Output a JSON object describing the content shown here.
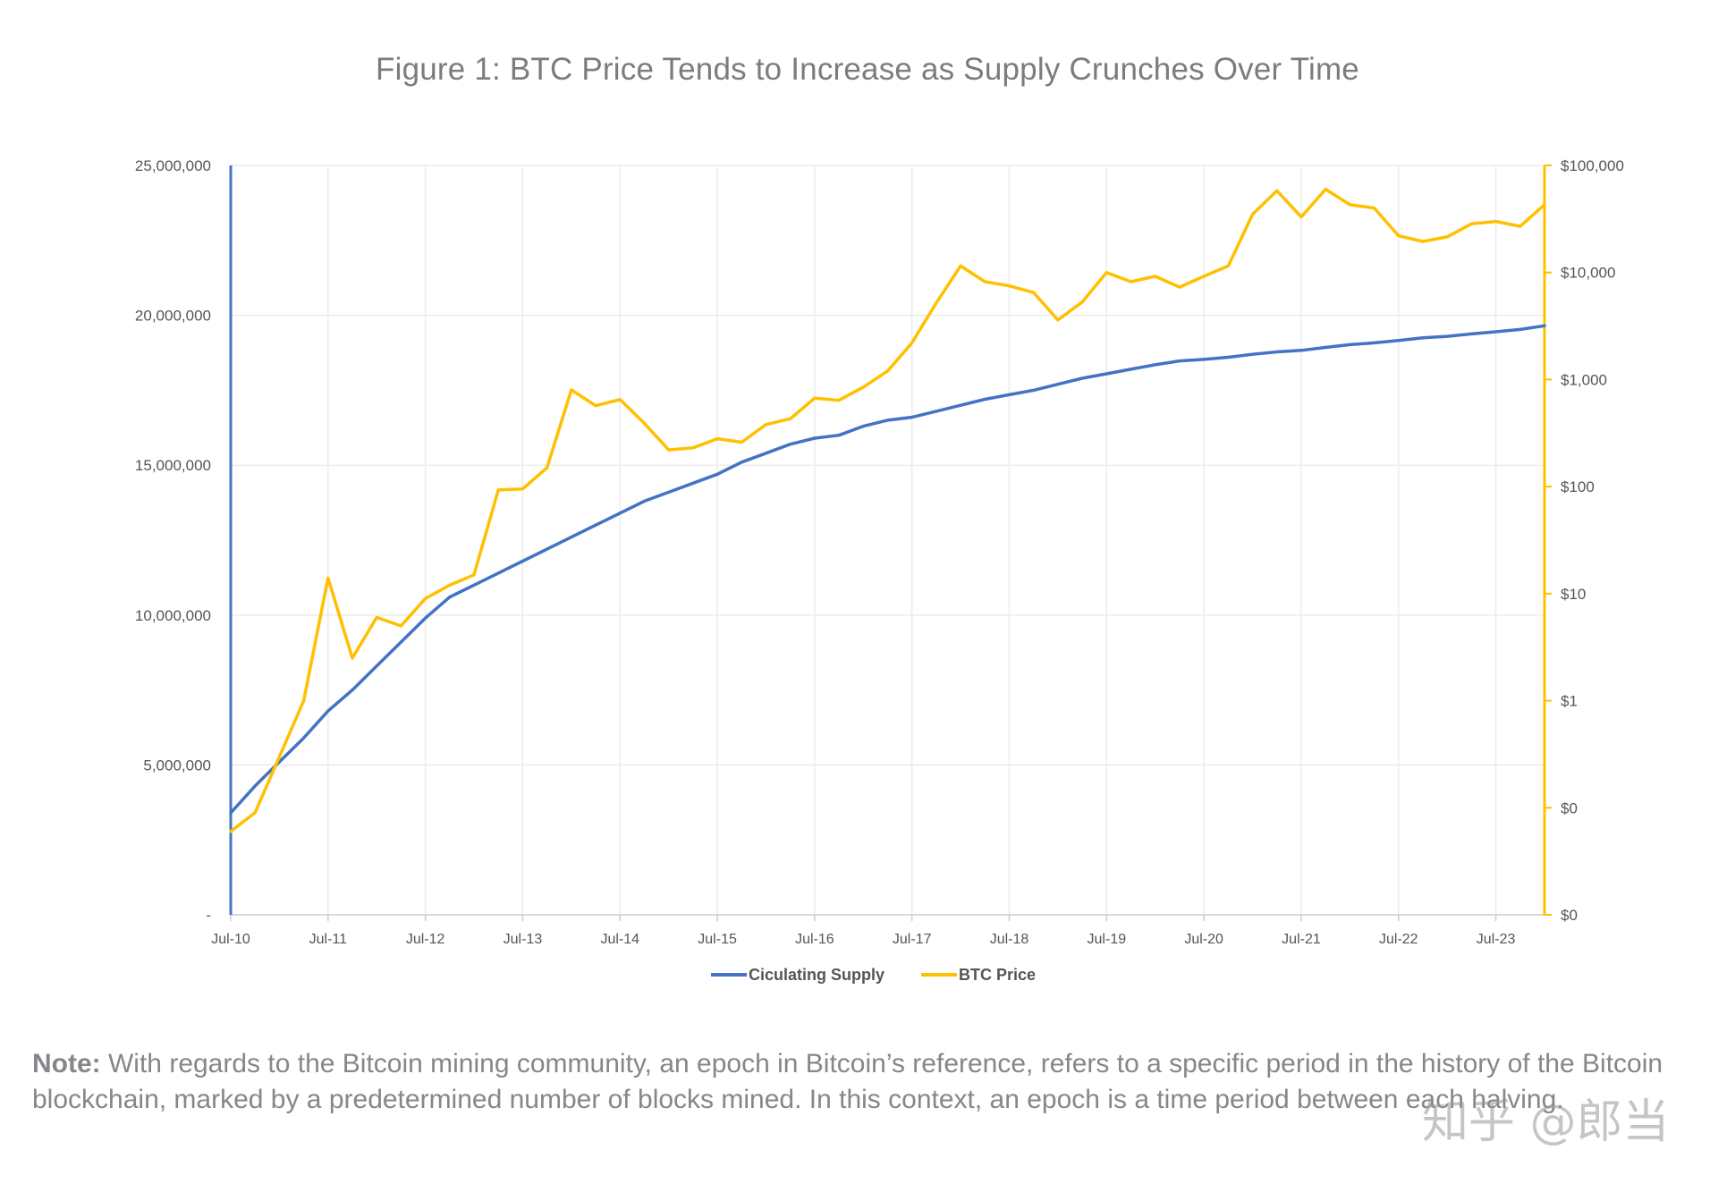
{
  "figure": {
    "title": "Figure 1: BTC Price Tends to Increase as Supply Crunches Over Time"
  },
  "chart_data": {
    "type": "line",
    "title": "Figure 1: BTC Price Tends to Increase as Supply Crunches Over Time",
    "x_tick_labels": [
      "Jul-10",
      "Jul-11",
      "Jul-12",
      "Jul-13",
      "Jul-14",
      "Jul-15",
      "Jul-16",
      "Jul-17",
      "Jul-18",
      "Jul-19",
      "Jul-20",
      "Jul-21",
      "Jul-22",
      "Jul-23"
    ],
    "x_range": [
      2010.5,
      2024.0
    ],
    "left_axis": {
      "ticks": [
        0,
        5000000,
        10000000,
        15000000,
        20000000,
        25000000
      ],
      "tick_labels": [
        "-",
        "5,000,000",
        "10,000,000",
        "15,000,000",
        "20,000,000",
        "25,000,000"
      ],
      "ylim": [
        0,
        25000000
      ],
      "scale": "linear"
    },
    "right_axis": {
      "ticks": [
        0.01,
        0.1,
        1,
        10,
        100,
        1000,
        10000,
        100000
      ],
      "tick_labels": [
        "$0",
        "$0",
        "$1",
        "$10",
        "$100",
        "$1,000",
        "$10,000",
        "$100,000"
      ],
      "ylim": [
        0.01,
        100000
      ],
      "scale": "log"
    },
    "grid": true,
    "legend_placement": "bottom",
    "series": [
      {
        "name": "Ciculating Supply",
        "axis": "left",
        "color": "#4472c4",
        "points": [
          [
            2010.5,
            3400000
          ],
          [
            2010.75,
            4300000
          ],
          [
            2011.0,
            5100000
          ],
          [
            2011.25,
            5900000
          ],
          [
            2011.5,
            6800000
          ],
          [
            2011.75,
            7500000
          ],
          [
            2012.0,
            8300000
          ],
          [
            2012.25,
            9100000
          ],
          [
            2012.5,
            9900000
          ],
          [
            2012.75,
            10600000
          ],
          [
            2013.0,
            11000000
          ],
          [
            2013.25,
            11400000
          ],
          [
            2013.5,
            11800000
          ],
          [
            2013.75,
            12200000
          ],
          [
            2014.0,
            12600000
          ],
          [
            2014.25,
            13000000
          ],
          [
            2014.5,
            13400000
          ],
          [
            2014.75,
            13800000
          ],
          [
            2015.0,
            14100000
          ],
          [
            2015.25,
            14400000
          ],
          [
            2015.5,
            14700000
          ],
          [
            2015.75,
            15100000
          ],
          [
            2016.0,
            15400000
          ],
          [
            2016.25,
            15700000
          ],
          [
            2016.5,
            15900000
          ],
          [
            2016.75,
            16000000
          ],
          [
            2017.0,
            16300000
          ],
          [
            2017.25,
            16500000
          ],
          [
            2017.5,
            16600000
          ],
          [
            2017.75,
            16800000
          ],
          [
            2018.0,
            17000000
          ],
          [
            2018.25,
            17200000
          ],
          [
            2018.5,
            17350000
          ],
          [
            2018.75,
            17500000
          ],
          [
            2019.0,
            17700000
          ],
          [
            2019.25,
            17900000
          ],
          [
            2019.5,
            18050000
          ],
          [
            2019.75,
            18200000
          ],
          [
            2020.0,
            18350000
          ],
          [
            2020.25,
            18480000
          ],
          [
            2020.5,
            18530000
          ],
          [
            2020.75,
            18600000
          ],
          [
            2021.0,
            18700000
          ],
          [
            2021.25,
            18780000
          ],
          [
            2021.5,
            18830000
          ],
          [
            2021.75,
            18930000
          ],
          [
            2022.0,
            19020000
          ],
          [
            2022.25,
            19080000
          ],
          [
            2022.5,
            19160000
          ],
          [
            2022.75,
            19250000
          ],
          [
            2023.0,
            19300000
          ],
          [
            2023.25,
            19380000
          ],
          [
            2023.5,
            19450000
          ],
          [
            2023.75,
            19530000
          ],
          [
            2024.0,
            19650000
          ]
        ]
      },
      {
        "name": "BTC Price",
        "axis": "right",
        "color": "#ffc000",
        "points": [
          [
            2010.5,
            0.06
          ],
          [
            2010.75,
            0.09
          ],
          [
            2011.0,
            0.3
          ],
          [
            2011.25,
            1.0
          ],
          [
            2011.5,
            14
          ],
          [
            2011.75,
            2.5
          ],
          [
            2012.0,
            6
          ],
          [
            2012.25,
            5
          ],
          [
            2012.5,
            9
          ],
          [
            2012.75,
            12
          ],
          [
            2013.0,
            15
          ],
          [
            2013.25,
            93
          ],
          [
            2013.5,
            95
          ],
          [
            2013.75,
            150
          ],
          [
            2014.0,
            800
          ],
          [
            2014.25,
            570
          ],
          [
            2014.5,
            650
          ],
          [
            2014.75,
            390
          ],
          [
            2015.0,
            220
          ],
          [
            2015.25,
            230
          ],
          [
            2015.5,
            280
          ],
          [
            2015.75,
            260
          ],
          [
            2016.0,
            380
          ],
          [
            2016.25,
            430
          ],
          [
            2016.5,
            670
          ],
          [
            2016.75,
            640
          ],
          [
            2017.0,
            850
          ],
          [
            2017.25,
            1200
          ],
          [
            2017.5,
            2200
          ],
          [
            2017.75,
            5200
          ],
          [
            2018.0,
            11500
          ],
          [
            2018.25,
            8200
          ],
          [
            2018.5,
            7500
          ],
          [
            2018.75,
            6500
          ],
          [
            2019.0,
            3600
          ],
          [
            2019.25,
            5300
          ],
          [
            2019.5,
            10000
          ],
          [
            2019.75,
            8200
          ],
          [
            2020.0,
            9200
          ],
          [
            2020.25,
            7300
          ],
          [
            2020.5,
            9200
          ],
          [
            2020.75,
            11500
          ],
          [
            2021.0,
            35000
          ],
          [
            2021.25,
            58000
          ],
          [
            2021.5,
            33000
          ],
          [
            2021.75,
            60000
          ],
          [
            2022.0,
            43000
          ],
          [
            2022.25,
            40000
          ],
          [
            2022.5,
            22000
          ],
          [
            2022.75,
            19500
          ],
          [
            2023.0,
            21500
          ],
          [
            2023.25,
            28500
          ],
          [
            2023.5,
            30000
          ],
          [
            2023.75,
            27000
          ],
          [
            2024.0,
            43000
          ]
        ]
      }
    ]
  },
  "note": {
    "label": "Note:",
    "text": " With regards to the Bitcoin mining community, an epoch in Bitcoin’s reference, refers to a specific period in the history of the Bitcoin blockchain, marked by a predetermined number of blocks mined. In this context, an epoch is a time period between each halving."
  },
  "watermark": {
    "text": "知乎 @郎当"
  }
}
